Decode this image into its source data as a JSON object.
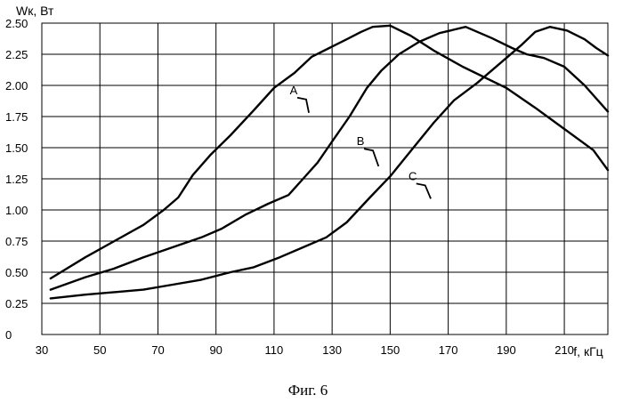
{
  "chart_data": {
    "type": "line",
    "ylabel": "Wк, Вт",
    "xlabel": "f, кГц",
    "caption": "Фиг. 6",
    "xlim": [
      30,
      225
    ],
    "ylim": [
      0,
      2.5
    ],
    "x_ticks": [
      30,
      50,
      70,
      90,
      110,
      130,
      150,
      170,
      190,
      210
    ],
    "y_ticks": [
      "0",
      "0.25",
      "0.50",
      "0.75",
      "1.00",
      "1.25",
      "1.50",
      "1.75",
      "2.00",
      "2.25",
      "2.50"
    ],
    "grid": true,
    "series": [
      {
        "name": "A",
        "label_at": [
          118,
          1.93
        ],
        "leader_to": [
          122,
          1.78
        ],
        "points": [
          [
            33,
            0.45
          ],
          [
            45,
            0.62
          ],
          [
            55,
            0.75
          ],
          [
            65,
            0.88
          ],
          [
            72,
            1.0
          ],
          [
            77,
            1.1
          ],
          [
            82,
            1.28
          ],
          [
            88,
            1.44
          ],
          [
            95,
            1.6
          ],
          [
            103,
            1.8
          ],
          [
            110,
            1.98
          ],
          [
            117,
            2.1
          ],
          [
            123,
            2.23
          ],
          [
            129,
            2.3
          ],
          [
            135,
            2.37
          ],
          [
            140,
            2.43
          ],
          [
            144,
            2.47
          ],
          [
            150,
            2.48
          ],
          [
            157,
            2.4
          ],
          [
            165,
            2.28
          ],
          [
            175,
            2.15
          ],
          [
            190,
            1.98
          ],
          [
            200,
            1.82
          ],
          [
            210,
            1.65
          ],
          [
            220,
            1.48
          ],
          [
            225,
            1.32
          ]
        ]
      },
      {
        "name": "B",
        "label_at": [
          141,
          1.52
        ],
        "leader_to": [
          146,
          1.35
        ],
        "points": [
          [
            33,
            0.36
          ],
          [
            45,
            0.46
          ],
          [
            55,
            0.53
          ],
          [
            65,
            0.62
          ],
          [
            75,
            0.7
          ],
          [
            85,
            0.78
          ],
          [
            92,
            0.85
          ],
          [
            100,
            0.96
          ],
          [
            108,
            1.05
          ],
          [
            115,
            1.12
          ],
          [
            120,
            1.25
          ],
          [
            125,
            1.38
          ],
          [
            130,
            1.55
          ],
          [
            136,
            1.75
          ],
          [
            142,
            1.98
          ],
          [
            147,
            2.12
          ],
          [
            153,
            2.25
          ],
          [
            160,
            2.35
          ],
          [
            167,
            2.42
          ],
          [
            176,
            2.47
          ],
          [
            185,
            2.38
          ],
          [
            192,
            2.3
          ],
          [
            197,
            2.25
          ],
          [
            203,
            2.22
          ],
          [
            210,
            2.15
          ],
          [
            217,
            2.0
          ],
          [
            225,
            1.79
          ]
        ]
      },
      {
        "name": "C",
        "label_at": [
          159,
          1.24
        ],
        "leader_to": [
          164,
          1.09
        ],
        "points": [
          [
            33,
            0.29
          ],
          [
            45,
            0.32
          ],
          [
            55,
            0.34
          ],
          [
            65,
            0.36
          ],
          [
            75,
            0.4
          ],
          [
            85,
            0.44
          ],
          [
            95,
            0.5
          ],
          [
            103,
            0.54
          ],
          [
            112,
            0.62
          ],
          [
            120,
            0.7
          ],
          [
            128,
            0.78
          ],
          [
            135,
            0.9
          ],
          [
            143,
            1.1
          ],
          [
            150,
            1.27
          ],
          [
            158,
            1.5
          ],
          [
            165,
            1.7
          ],
          [
            172,
            1.88
          ],
          [
            180,
            2.02
          ],
          [
            188,
            2.18
          ],
          [
            195,
            2.32
          ],
          [
            200,
            2.43
          ],
          [
            205,
            2.47
          ],
          [
            211,
            2.44
          ],
          [
            217,
            2.37
          ],
          [
            221,
            2.3
          ],
          [
            225,
            2.24
          ]
        ]
      }
    ]
  }
}
